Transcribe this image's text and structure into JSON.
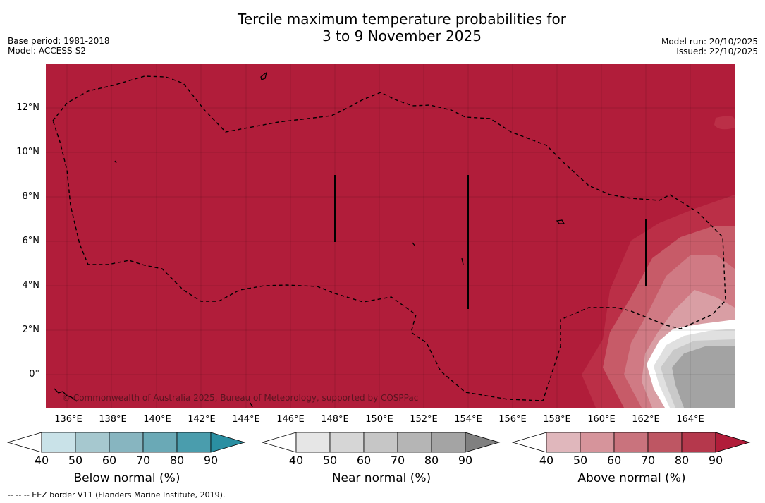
{
  "header": {
    "title_line1": "Tercile maximum temperature probabilities for",
    "title_line2": "3 to 9 November 2025",
    "base_period": "Base period: 1981-2018",
    "model": "Model: ACCESS-S2",
    "model_run": "Model run: 20/10/2025",
    "issued": "Issued: 22/10/2025"
  },
  "map": {
    "copyright": "© Commonwealth of Australia 2025, Bureau of Meteorology, supported by COSPPac",
    "y_labels": [
      "12°N",
      "10°N",
      "8°N",
      "6°N",
      "4°N",
      "2°N",
      "0°"
    ],
    "x_labels": [
      "136°E",
      "138°E",
      "140°E",
      "142°E",
      "144°E",
      "146°E",
      "148°E",
      "150°E",
      "152°E",
      "154°E",
      "156°E",
      "158°E",
      "160°E",
      "162°E",
      "164°E"
    ],
    "colors": {
      "above_90": "#b11d3a",
      "above_80": "#bb2f47",
      "above_70": "#c75b68",
      "above_60": "#d07a84",
      "above_50": "#d99ea4",
      "near_50": "#e0e0e0",
      "near_60": "#c9c9c9",
      "near_80": "#a3a3a3"
    }
  },
  "legends": {
    "ticks": [
      "40",
      "50",
      "60",
      "70",
      "80",
      "90"
    ],
    "below": {
      "title": "Below normal (%)",
      "colors": [
        "#ffffff",
        "#c9e2e8",
        "#a6c8cf",
        "#87b5c0",
        "#6aa9b6",
        "#4a9dad",
        "#2a8fa2"
      ]
    },
    "near": {
      "title": "Near normal (%)",
      "colors": [
        "#ffffff",
        "#e6e6e6",
        "#d6d6d6",
        "#c6c6c6",
        "#b5b5b5",
        "#a4a4a4",
        "#808080"
      ]
    },
    "above": {
      "title": "Above normal (%)",
      "colors": [
        "#ffffff",
        "#e0b7bc",
        "#d6949b",
        "#c9737d",
        "#be5663",
        "#b5384c",
        "#b11d3a"
      ]
    }
  },
  "footer": {
    "eez_note": "--  --  -- EEZ border V11 (Flanders Marine Institute, 2019)."
  }
}
